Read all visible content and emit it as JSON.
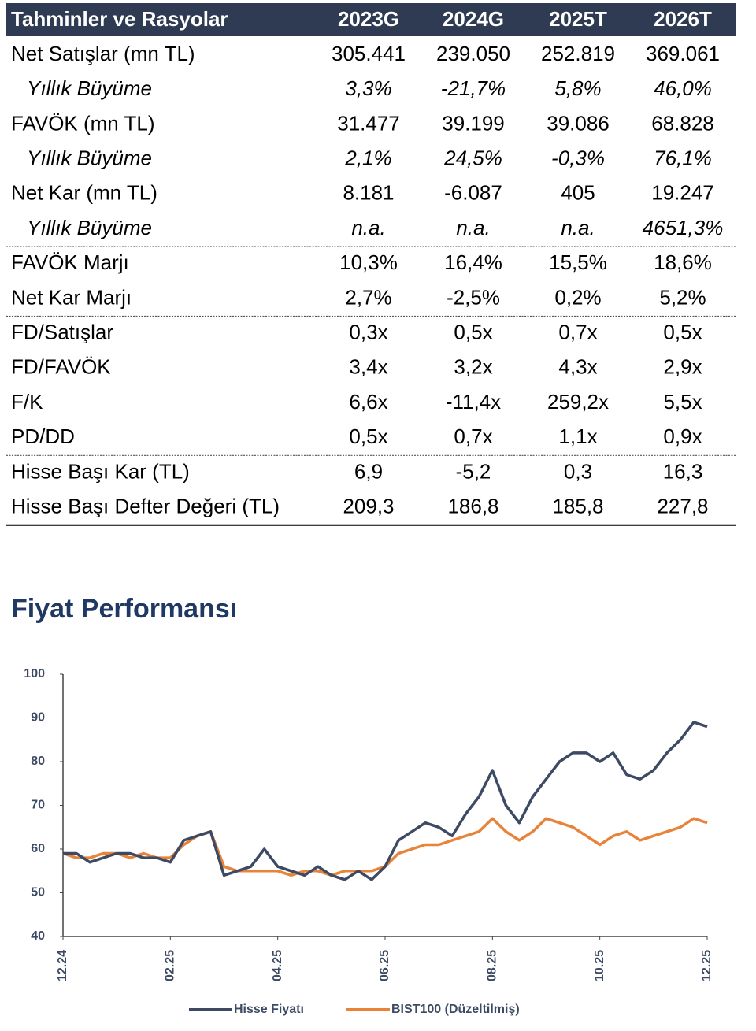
{
  "table": {
    "header": [
      "Tahminler ve Rasyolar",
      "2023G",
      "2024G",
      "2025T",
      "2026T"
    ],
    "sections": [
      [
        {
          "cells": [
            "Net Satışlar (mn TL)",
            "305.441",
            "239.050",
            "252.819",
            "369.061"
          ],
          "italic": false
        },
        {
          "cells": [
            "Yıllık Büyüme",
            "3,3%",
            "-21,7%",
            "5,8%",
            "46,0%"
          ],
          "italic": true
        },
        {
          "cells": [
            "FAVÖK (mn TL)",
            "31.477",
            "39.199",
            "39.086",
            "68.828"
          ],
          "italic": false
        },
        {
          "cells": [
            "Yıllık Büyüme",
            "2,1%",
            "24,5%",
            "-0,3%",
            "76,1%"
          ],
          "italic": true
        },
        {
          "cells": [
            "Net Kar (mn TL)",
            "8.181",
            "-6.087",
            "405",
            "19.247"
          ],
          "italic": false
        },
        {
          "cells": [
            "Yıllık Büyüme",
            "n.a.",
            "n.a.",
            "n.a.",
            "4651,3%"
          ],
          "italic": true
        }
      ],
      [
        {
          "cells": [
            "FAVÖK Marjı",
            "10,3%",
            "16,4%",
            "15,5%",
            "18,6%"
          ],
          "italic": false
        },
        {
          "cells": [
            "Net Kar Marjı",
            "2,7%",
            "-2,5%",
            "0,2%",
            "5,2%"
          ],
          "italic": false
        }
      ],
      [
        {
          "cells": [
            "FD/Satışlar",
            "0,3x",
            "0,5x",
            "0,7x",
            "0,5x"
          ],
          "italic": false
        },
        {
          "cells": [
            "FD/FAVÖK",
            "3,4x",
            "3,2x",
            "4,3x",
            "2,9x"
          ],
          "italic": false
        },
        {
          "cells": [
            "F/K",
            "6,6x",
            "-11,4x",
            "259,2x",
            "5,5x"
          ],
          "italic": false
        },
        {
          "cells": [
            "PD/DD",
            "0,5x",
            "0,7x",
            "1,1x",
            "0,9x"
          ],
          "italic": false
        }
      ],
      [
        {
          "cells": [
            "Hisse Başı Kar (TL)",
            "6,9",
            "-5,2",
            "0,3",
            "16,3"
          ],
          "italic": false
        },
        {
          "cells": [
            "Hisse Başı Defter Değeri (TL)",
            "209,3",
            "186,8",
            "185,8",
            "227,8"
          ],
          "italic": false
        }
      ]
    ]
  },
  "chart_data": {
    "type": "line",
    "title": "Fiyat Performansı",
    "x": [
      0,
      0.25,
      0.5,
      0.75,
      1,
      1.25,
      1.5,
      1.75,
      2,
      2.25,
      2.5,
      2.75,
      3,
      3.25,
      3.5,
      3.75,
      4,
      4.25,
      4.5,
      4.75,
      5,
      5.25,
      5.5,
      5.75,
      6,
      6.25,
      6.5,
      6.75,
      7,
      7.25,
      7.5,
      7.75,
      8,
      8.25,
      8.5,
      8.75,
      9,
      9.25,
      9.5,
      9.75,
      10,
      10.25,
      10.5,
      10.75,
      11,
      11.25,
      11.5,
      11.75,
      12
    ],
    "series": [
      {
        "name": "Hisse Fiyatı",
        "color": "#3d4a63",
        "values": [
          59,
          59,
          57,
          58,
          59,
          59,
          58,
          58,
          57,
          62,
          63,
          64,
          54,
          55,
          56,
          60,
          56,
          55,
          54,
          56,
          54,
          53,
          55,
          53,
          56,
          62,
          64,
          66,
          65,
          63,
          68,
          72,
          78,
          70,
          66,
          72,
          76,
          80,
          82,
          82,
          80,
          82,
          77,
          76,
          78,
          82,
          85,
          89,
          88
        ]
      },
      {
        "name": "BIST100 (Düzeltilmiş)",
        "color": "#e8833a",
        "values": [
          59,
          58,
          58,
          59,
          59,
          58,
          59,
          58,
          58,
          61,
          63,
          64,
          56,
          55,
          55,
          55,
          55,
          54,
          55,
          55,
          54,
          55,
          55,
          55,
          56,
          59,
          60,
          61,
          61,
          62,
          63,
          64,
          67,
          64,
          62,
          64,
          67,
          66,
          65,
          63,
          61,
          63,
          64,
          62,
          63,
          64,
          65,
          67,
          66
        ]
      }
    ],
    "xlim": [
      0,
      12
    ],
    "xticks": [
      {
        "value": 0,
        "label": "12.24"
      },
      {
        "value": 2,
        "label": "02.25"
      },
      {
        "value": 4,
        "label": "04.25"
      },
      {
        "value": 6,
        "label": "06.25"
      },
      {
        "value": 8,
        "label": "08.25"
      },
      {
        "value": 10,
        "label": "10.25"
      },
      {
        "value": 12,
        "label": "12.25"
      }
    ],
    "ylim": [
      40,
      100
    ],
    "yticks": [
      40,
      50,
      60,
      70,
      80,
      90,
      100
    ]
  }
}
